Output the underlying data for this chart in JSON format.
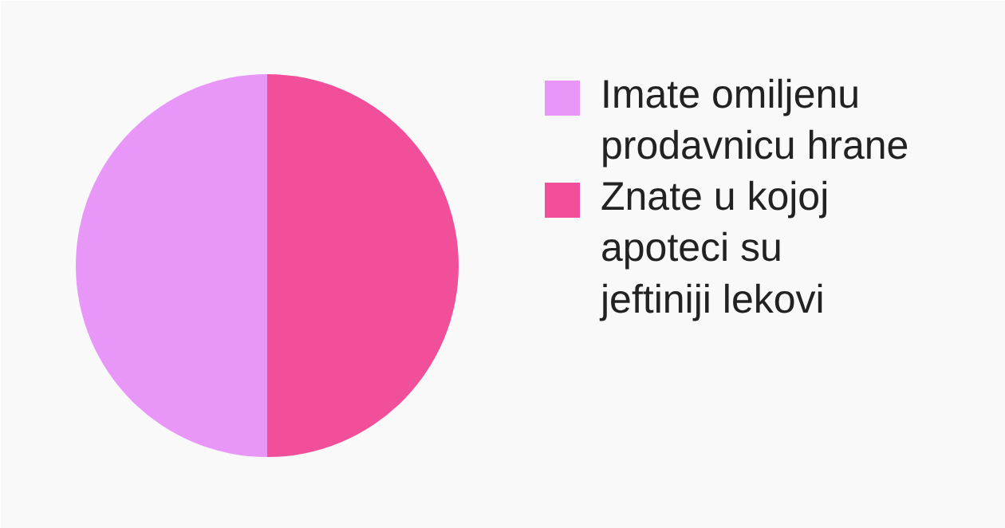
{
  "chart_data": {
    "type": "pie",
    "categories": [
      "Imate omiljenu prodavnicu hrane",
      "Znate u kojoj apoteci su jeftiniji lekovi"
    ],
    "values": [
      50,
      50
    ],
    "colors": [
      "#e897f8",
      "#f24f9b"
    ],
    "legend": "right"
  }
}
